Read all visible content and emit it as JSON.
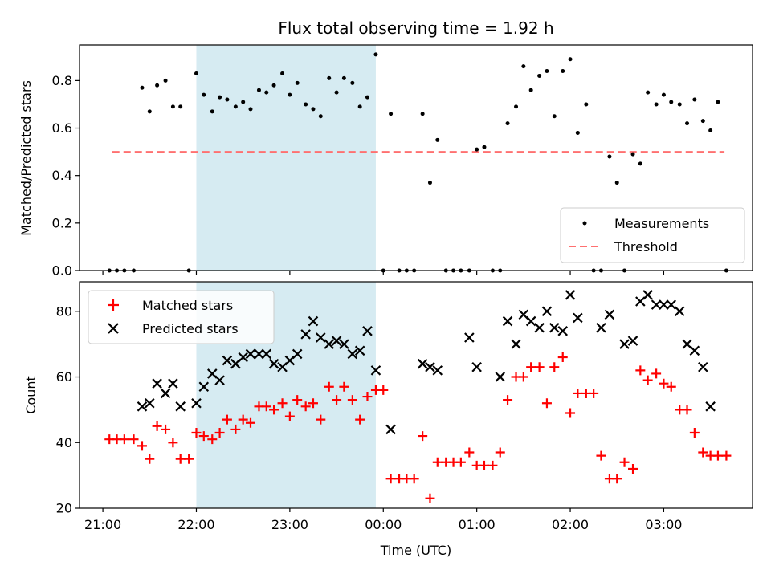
{
  "figure": {
    "title": "Flux total observing time = 1.92 h",
    "xlabel": "Time (UTC)",
    "xticks": [
      "21:00",
      "22:00",
      "23:00",
      "00:00",
      "01:00",
      "02:00",
      "03:00"
    ],
    "shade_color": "#add8e6",
    "shade_range_hours": [
      22.0,
      23.92
    ]
  },
  "chart_data": [
    {
      "type": "scatter",
      "ylabel": "Matched/Predicted stars",
      "ylim": [
        0,
        0.95
      ],
      "xlim_hours": [
        20.75,
        27.95
      ],
      "yticks": [
        "0.0",
        "0.2",
        "0.4",
        "0.6",
        "0.8"
      ],
      "legend": {
        "placement": "lower-right",
        "entries": [
          "Measurements",
          "Threshold"
        ]
      },
      "threshold": {
        "name": "Threshold",
        "value": 0.5,
        "x_range_hours": [
          21.1,
          27.65
        ],
        "color": "#ff7070"
      },
      "series": [
        {
          "name": "Measurements",
          "color": "#000000",
          "x_hours": [
            21.07,
            21.15,
            21.23,
            21.33,
            21.42,
            21.5,
            21.58,
            21.67,
            21.75,
            21.83,
            21.92,
            22.0,
            22.08,
            22.17,
            22.25,
            22.33,
            22.42,
            22.5,
            22.58,
            22.67,
            22.75,
            22.83,
            22.92,
            23.0,
            23.08,
            23.17,
            23.25,
            23.33,
            23.42,
            23.5,
            23.58,
            23.67,
            23.75,
            23.83,
            23.92,
            24.0,
            24.08,
            24.17,
            24.25,
            24.33,
            24.42,
            24.5,
            24.58,
            24.67,
            24.75,
            24.83,
            24.92,
            25.0,
            25.08,
            25.17,
            25.25,
            25.33,
            25.42,
            25.5,
            25.58,
            25.67,
            25.75,
            25.83,
            25.92,
            26.0,
            26.08,
            26.17,
            26.25,
            26.33,
            26.42,
            26.5,
            26.58,
            26.67,
            26.75,
            26.83,
            26.92,
            27.0,
            27.08,
            27.17,
            27.25,
            27.33,
            27.42,
            27.5,
            27.58,
            27.67
          ],
          "values": [
            0,
            0,
            0,
            0,
            0.77,
            0.67,
            0.78,
            0.8,
            0.69,
            0.69,
            0,
            0.83,
            0.74,
            0.67,
            0.73,
            0.72,
            0.69,
            0.71,
            0.68,
            0.76,
            0.75,
            0.78,
            0.83,
            0.74,
            0.79,
            0.7,
            0.68,
            0.65,
            0.81,
            0.75,
            0.81,
            0.79,
            0.69,
            0.73,
            0.91,
            0,
            0.66,
            0,
            0,
            0,
            0.66,
            0.37,
            0.55,
            0,
            0,
            0,
            0,
            0.51,
            0.52,
            0,
            0,
            0.62,
            0.69,
            0.86,
            0.76,
            0.82,
            0.84,
            0.65,
            0.84,
            0.89,
            0.58,
            0.7,
            0,
            0,
            0.48,
            0.37,
            0,
            0.49,
            0.45,
            0.75,
            0.7,
            0.74,
            0.71,
            0.7,
            0.62,
            0.72,
            0.63,
            0.59,
            0.71,
            0
          ]
        }
      ]
    },
    {
      "type": "scatter",
      "ylabel": "Count",
      "ylim": [
        20,
        89
      ],
      "xlim_hours": [
        20.75,
        27.95
      ],
      "yticks": [
        "20",
        "40",
        "60",
        "80"
      ],
      "legend": {
        "placement": "upper-left",
        "entries": [
          "Matched stars",
          "Predicted stars"
        ]
      },
      "series": [
        {
          "name": "Matched stars",
          "marker": "plus",
          "color": "#ff0000",
          "x_hours": [
            21.07,
            21.15,
            21.23,
            21.33,
            21.42,
            21.5,
            21.58,
            21.67,
            21.75,
            21.83,
            21.92,
            22.0,
            22.08,
            22.17,
            22.25,
            22.33,
            22.42,
            22.5,
            22.58,
            22.67,
            22.75,
            22.83,
            22.92,
            23.0,
            23.08,
            23.17,
            23.25,
            23.33,
            23.42,
            23.5,
            23.58,
            23.67,
            23.75,
            23.83,
            23.92,
            24.0,
            24.08,
            24.17,
            24.25,
            24.33,
            24.42,
            24.5,
            24.58,
            24.67,
            24.75,
            24.83,
            24.92,
            25.0,
            25.08,
            25.17,
            25.25,
            25.33,
            25.42,
            25.5,
            25.58,
            25.67,
            25.75,
            25.83,
            25.92,
            26.0,
            26.08,
            26.17,
            26.25,
            26.33,
            26.42,
            26.5,
            26.58,
            26.67,
            26.75,
            26.83,
            26.92,
            27.0,
            27.08,
            27.17,
            27.25,
            27.33,
            27.42,
            27.5,
            27.58,
            27.67
          ],
          "values": [
            41,
            41,
            41,
            41,
            39,
            35,
            45,
            44,
            40,
            35,
            35,
            43,
            42,
            41,
            43,
            47,
            44,
            47,
            46,
            51,
            51,
            50,
            52,
            48,
            53,
            51,
            52,
            47,
            57,
            53,
            57,
            53,
            47,
            54,
            56,
            56,
            29,
            29,
            29,
            29,
            42,
            23,
            34,
            34,
            34,
            34,
            37,
            33,
            33,
            33,
            37,
            53,
            60,
            60,
            63,
            63,
            52,
            63,
            66,
            49,
            55,
            55,
            55,
            36,
            29,
            29,
            34,
            32,
            62,
            59,
            61,
            58,
            57,
            50,
            50,
            43,
            37,
            36,
            36,
            36
          ]
        },
        {
          "name": "Predicted stars",
          "marker": "x",
          "color": "#000000",
          "x_hours": [
            21.42,
            21.5,
            21.58,
            21.67,
            21.75,
            21.83,
            22.0,
            22.08,
            22.17,
            22.25,
            22.33,
            22.42,
            22.5,
            22.58,
            22.67,
            22.75,
            22.83,
            22.92,
            23.0,
            23.08,
            23.17,
            23.25,
            23.33,
            23.42,
            23.5,
            23.58,
            23.67,
            23.75,
            23.83,
            23.92,
            24.08,
            24.42,
            24.5,
            24.58,
            24.92,
            25.0,
            25.25,
            25.33,
            25.42,
            25.5,
            25.58,
            25.67,
            25.75,
            25.83,
            25.92,
            26.0,
            26.08,
            26.33,
            26.42,
            26.58,
            26.67,
            26.75,
            26.83,
            26.92,
            27.0,
            27.08,
            27.17,
            27.25,
            27.33,
            27.42,
            27.5
          ],
          "values": [
            51,
            52,
            58,
            55,
            58,
            51,
            52,
            57,
            61,
            59,
            65,
            64,
            66,
            67,
            67,
            67,
            64,
            63,
            65,
            67,
            73,
            77,
            72,
            70,
            71,
            70,
            67,
            68,
            74,
            62,
            44,
            64,
            63,
            62,
            72,
            63,
            60,
            77,
            70,
            79,
            77,
            75,
            80,
            75,
            74,
            85,
            78,
            75,
            79,
            70,
            71,
            83,
            85,
            82,
            82,
            82,
            80,
            70,
            68,
            63,
            51
          ]
        }
      ]
    }
  ]
}
